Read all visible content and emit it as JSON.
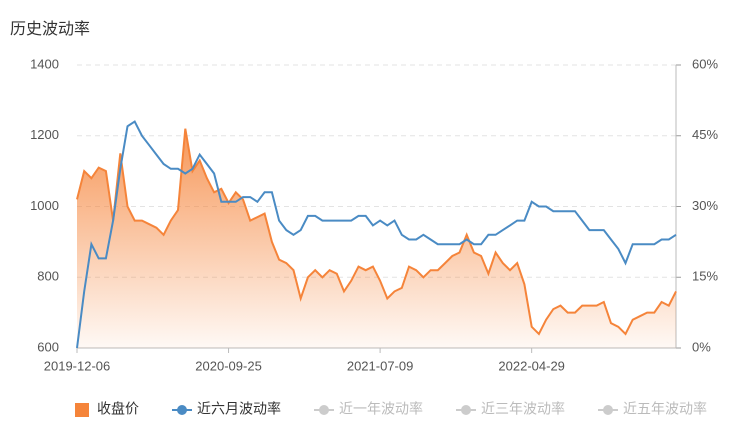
{
  "chart_data": {
    "type": "dual-axis-line",
    "title": "历史波动率",
    "categories": [
      "2019-12-06",
      null,
      null,
      null,
      null,
      null,
      null,
      null,
      null,
      null,
      null,
      null,
      null,
      null,
      null,
      null,
      null,
      null,
      null,
      null,
      null,
      "2020-09-25",
      null,
      null,
      null,
      null,
      null,
      null,
      null,
      null,
      null,
      null,
      null,
      null,
      null,
      null,
      null,
      null,
      null,
      null,
      null,
      null,
      "2021-07-09",
      null,
      null,
      null,
      null,
      null,
      null,
      null,
      null,
      null,
      null,
      null,
      null,
      null,
      null,
      null,
      null,
      null,
      null,
      null,
      null,
      "2022-04-29",
      null,
      null,
      null,
      null,
      null,
      null,
      null,
      null,
      null,
      null,
      null,
      null,
      null,
      null,
      null,
      null,
      null,
      null,
      null,
      null
    ],
    "series": [
      {
        "name": "收盘价",
        "color": "#f5843a",
        "area": true,
        "axis": "y",
        "values": [
          1020,
          1100,
          1080,
          1110,
          1100,
          960,
          1150,
          1000,
          960,
          960,
          950,
          940,
          920,
          960,
          990,
          1220,
          1100,
          1130,
          1080,
          1040,
          1050,
          1010,
          1040,
          1020,
          960,
          970,
          980,
          900,
          850,
          840,
          820,
          740,
          800,
          820,
          800,
          820,
          810,
          760,
          790,
          830,
          820,
          830,
          790,
          740,
          760,
          770,
          830,
          820,
          800,
          820,
          820,
          840,
          860,
          870,
          920,
          870,
          860,
          810,
          870,
          840,
          820,
          840,
          780,
          660,
          640,
          680,
          710,
          720,
          700,
          700,
          720,
          720,
          720,
          730,
          670,
          660,
          640,
          680,
          690,
          700,
          700,
          730,
          720,
          760
        ]
      },
      {
        "name": "近六月波动率",
        "color": "#4a8bc4",
        "axis": "y2",
        "values": [
          0,
          12,
          22,
          19,
          19,
          27,
          38,
          47,
          48,
          45,
          43,
          41,
          39,
          38,
          38,
          37,
          38,
          41,
          39,
          37,
          31,
          31,
          31,
          32,
          32,
          31,
          33,
          33,
          27,
          25,
          24,
          25,
          28,
          28,
          27,
          27,
          27,
          27,
          27,
          28,
          28,
          26,
          27,
          26,
          27,
          24,
          23,
          23,
          24,
          23,
          22,
          22,
          22,
          22,
          23,
          22,
          22,
          24,
          24,
          25,
          26,
          27,
          27,
          31,
          30,
          30,
          29,
          29,
          29,
          29,
          27,
          25,
          25,
          25,
          23,
          21,
          18,
          22,
          22,
          22,
          22,
          23,
          23,
          24
        ]
      },
      {
        "name": "近一年波动率",
        "color": "#cccccc",
        "hidden": true
      },
      {
        "name": "近三年波动率",
        "color": "#cccccc",
        "hidden": true
      },
      {
        "name": "近五年波动率",
        "color": "#cccccc",
        "hidden": true
      }
    ],
    "ylim": [
      600,
      1400
    ],
    "yticks": [
      600,
      800,
      1000,
      1200,
      1400
    ],
    "y2lim": [
      0,
      60
    ],
    "y2ticks": [
      {
        "value": 0,
        "label": "0%"
      },
      {
        "value": 15,
        "label": "15%"
      },
      {
        "value": 30,
        "label": "30%"
      },
      {
        "value": 45,
        "label": "45%"
      },
      {
        "value": 60,
        "label": "60%"
      }
    ],
    "grid": true,
    "legend": "bottom"
  }
}
